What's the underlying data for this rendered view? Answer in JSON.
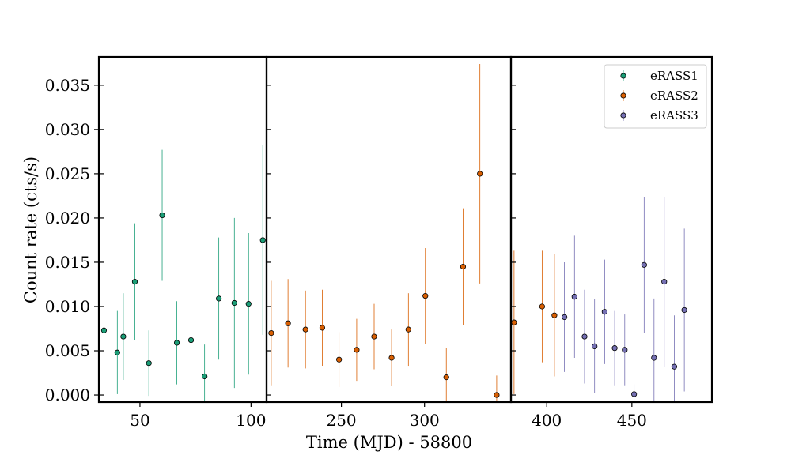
{
  "chart_data": {
    "type": "scatter",
    "xlabel": "Time (MJD) - 58800",
    "ylabel": "Count rate (cts/s)",
    "ylim": [
      -0.0008,
      0.0382
    ],
    "y_ticks": [
      0.0,
      0.005,
      0.01,
      0.015,
      0.02,
      0.025,
      0.03,
      0.035
    ],
    "y_tick_labels": [
      "0.000",
      "0.005",
      "0.010",
      "0.015",
      "0.020",
      "0.025",
      "0.030",
      "0.035"
    ],
    "legend_position": "top-right",
    "grid": false,
    "colors": {
      "eRASS1": "#1b9e77",
      "eRASS2": "#d95f02",
      "eRASS3": "#7570b3"
    },
    "panels": [
      {
        "xlim": [
          31.5,
          107
        ],
        "x_ticks": [
          50,
          100
        ],
        "x_tick_labels": [
          "50",
          "100"
        ],
        "points": [
          {
            "series": "eRASS1",
            "x": 33.8,
            "y": 0.0073,
            "err": 0.0069
          },
          {
            "series": "eRASS1",
            "x": 39.8,
            "y": 0.0048,
            "err": 0.0047
          },
          {
            "series": "eRASS1",
            "x": 42.5,
            "y": 0.0066,
            "err": 0.0049
          },
          {
            "series": "eRASS1",
            "x": 47.7,
            "y": 0.0128,
            "err": 0.0066
          },
          {
            "series": "eRASS1",
            "x": 54.0,
            "y": 0.0036,
            "err": 0.0037
          },
          {
            "series": "eRASS1",
            "x": 60.0,
            "y": 0.0203,
            "err": 0.0074
          },
          {
            "series": "eRASS1",
            "x": 66.6,
            "y": 0.0059,
            "err": 0.0047
          },
          {
            "series": "eRASS1",
            "x": 73.0,
            "y": 0.0062,
            "err": 0.0048
          },
          {
            "series": "eRASS1",
            "x": 79.1,
            "y": 0.0021,
            "err": 0.0036
          },
          {
            "series": "eRASS1",
            "x": 85.5,
            "y": 0.0109,
            "err": 0.0069
          },
          {
            "series": "eRASS1",
            "x": 92.5,
            "y": 0.0104,
            "err": 0.0096
          },
          {
            "series": "eRASS1",
            "x": 98.9,
            "y": 0.0103,
            "err": 0.008
          },
          {
            "series": "eRASS1",
            "x": 105.3,
            "y": 0.0175,
            "err": 0.0107
          }
        ]
      },
      {
        "xlim": [
          205,
          352
        ],
        "x_ticks": [
          250,
          300
        ],
        "x_tick_labels": [
          "250",
          "300"
        ],
        "points": [
          {
            "series": "eRASS2",
            "x": 207.8,
            "y": 0.007,
            "err": 0.0059
          },
          {
            "series": "eRASS2",
            "x": 217.9,
            "y": 0.0081,
            "err": 0.005
          },
          {
            "series": "eRASS2",
            "x": 228.4,
            "y": 0.0074,
            "err": 0.0044
          },
          {
            "series": "eRASS2",
            "x": 238.5,
            "y": 0.0076,
            "err": 0.0043
          },
          {
            "series": "eRASS2",
            "x": 248.6,
            "y": 0.004,
            "err": 0.0031
          },
          {
            "series": "eRASS2",
            "x": 259.2,
            "y": 0.0051,
            "err": 0.0035
          },
          {
            "series": "eRASS2",
            "x": 269.7,
            "y": 0.0066,
            "err": 0.0037
          },
          {
            "series": "eRASS2",
            "x": 280.2,
            "y": 0.0042,
            "err": 0.0032
          },
          {
            "series": "eRASS2",
            "x": 290.3,
            "y": 0.0074,
            "err": 0.0041
          },
          {
            "series": "eRASS2",
            "x": 300.5,
            "y": 0.0112,
            "err": 0.0054
          },
          {
            "series": "eRASS2",
            "x": 313.1,
            "y": 0.002,
            "err": 0.0033
          },
          {
            "series": "eRASS2",
            "x": 323.2,
            "y": 0.0145,
            "err": 0.0066
          },
          {
            "series": "eRASS2",
            "x": 333.3,
            "y": 0.025,
            "err": 0.0124
          },
          {
            "series": "eRASS2",
            "x": 343.4,
            "y": 0.0,
            "err": 0.0022
          }
        ]
      },
      {
        "xlim": [
          379,
          497
        ],
        "x_ticks": [
          400,
          450
        ],
        "x_tick_labels": [
          "400",
          "450"
        ],
        "points": [
          {
            "series": "eRASS2",
            "x": 380.8,
            "y": 0.0082,
            "err": 0.0081
          },
          {
            "series": "eRASS2",
            "x": 397.3,
            "y": 0.01,
            "err": 0.0063
          },
          {
            "series": "eRASS2",
            "x": 404.5,
            "y": 0.009,
            "err": 0.0069
          },
          {
            "series": "eRASS3",
            "x": 410.4,
            "y": 0.0088,
            "err": 0.0062
          },
          {
            "series": "eRASS3",
            "x": 416.3,
            "y": 0.0111,
            "err": 0.0069
          },
          {
            "series": "eRASS3",
            "x": 422.2,
            "y": 0.0066,
            "err": 0.0053
          },
          {
            "series": "eRASS3",
            "x": 428.1,
            "y": 0.0055,
            "err": 0.0053
          },
          {
            "series": "eRASS3",
            "x": 434.0,
            "y": 0.0094,
            "err": 0.0059
          },
          {
            "series": "eRASS3",
            "x": 439.9,
            "y": 0.0053,
            "err": 0.0042
          },
          {
            "series": "eRASS3",
            "x": 445.8,
            "y": 0.0051,
            "err": 0.004
          },
          {
            "series": "eRASS3",
            "x": 451.3,
            "y": 0.0001,
            "err": 0.0011
          },
          {
            "series": "eRASS3",
            "x": 457.2,
            "y": 0.0147,
            "err": 0.0077
          },
          {
            "series": "eRASS3",
            "x": 463.0,
            "y": 0.0042,
            "err": 0.0067
          },
          {
            "series": "eRASS3",
            "x": 469.0,
            "y": 0.0128,
            "err": 0.0096
          },
          {
            "series": "eRASS3",
            "x": 474.9,
            "y": 0.0032,
            "err": 0.0058
          },
          {
            "series": "eRASS3",
            "x": 480.8,
            "y": 0.0096,
            "err": 0.0092
          }
        ]
      }
    ],
    "legend": [
      "eRASS1",
      "eRASS2",
      "eRASS3"
    ]
  }
}
